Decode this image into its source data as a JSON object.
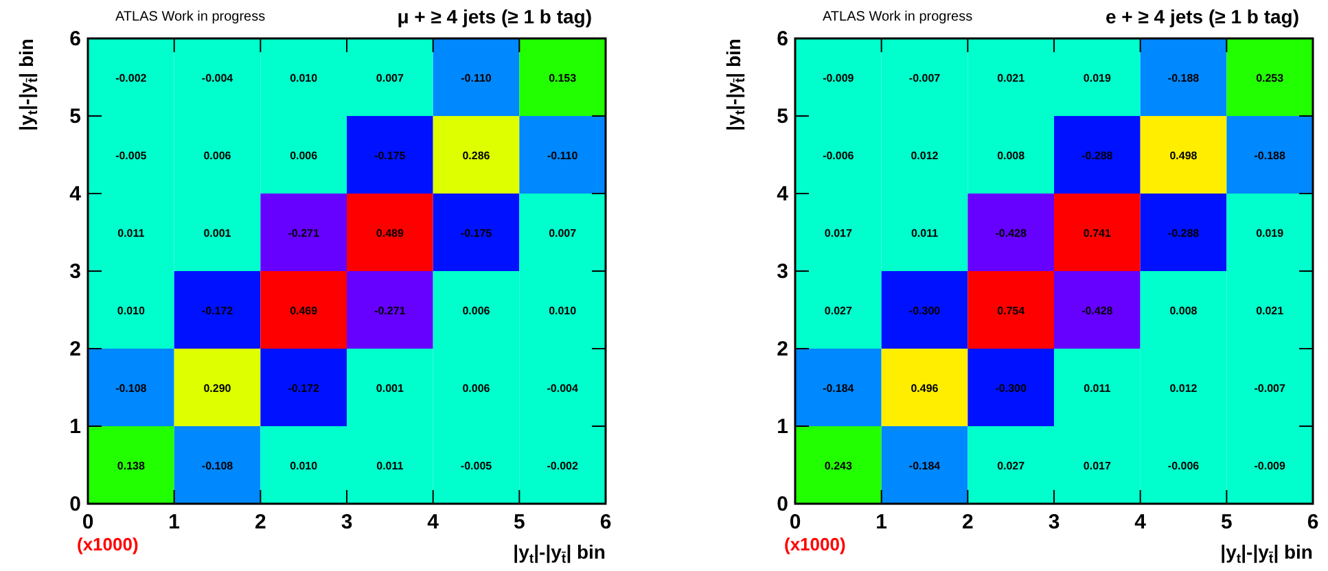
{
  "chart_data": [
    {
      "type": "heatmap",
      "title": "μ + ≥ 4 jets (≥ 1 b tag)",
      "xlabel": "|y$_{t}$|-|y$_{t̄}$| bin",
      "ylabel": "|y$_{t}$|-|y$_{t̄}$| bin",
      "annotations": [
        "ATLAS Work in progress",
        "(x1000)"
      ],
      "xlim": [
        0,
        6
      ],
      "xticks": [
        0,
        1,
        2,
        3,
        4,
        5,
        6
      ],
      "ylim": [
        0,
        6
      ],
      "yticks": [
        0,
        1,
        2,
        3,
        4,
        5,
        6
      ],
      "data_labels": true,
      "cells": [
        [
          -0.002,
          -0.004,
          0.01,
          0.007,
          -0.11,
          0.153
        ],
        [
          -0.005,
          0.006,
          0.006,
          -0.175,
          0.286,
          -0.11
        ],
        [
          0.011,
          0.001,
          -0.271,
          0.489,
          -0.175,
          0.007
        ],
        [
          0.01,
          -0.172,
          0.469,
          -0.271,
          0.006,
          0.01
        ],
        [
          -0.108,
          0.29,
          -0.172,
          0.001,
          0.006,
          -0.004
        ],
        [
          0.138,
          -0.108,
          0.01,
          0.011,
          -0.005,
          -0.002
        ]
      ],
      "cell_labels": [
        [
          "-0.002",
          "-0.004",
          "0.010",
          "0.007",
          "-0.110",
          "0.153"
        ],
        [
          "-0.005",
          "0.006",
          "0.006",
          "-0.175",
          "0.286",
          "-0.110"
        ],
        [
          "0.011",
          "0.001",
          "-0.271",
          "0.489",
          "-0.175",
          "0.007"
        ],
        [
          "0.010",
          "-0.172",
          "0.469",
          "-0.271",
          "0.006",
          "0.010"
        ],
        [
          "-0.108",
          "0.290",
          "-0.172",
          "0.001",
          "0.006",
          "-0.004"
        ],
        [
          "0.138",
          "-0.108",
          "0.010",
          "0.011",
          "-0.005",
          "-0.002"
        ]
      ]
    },
    {
      "type": "heatmap",
      "title": "e + ≥ 4 jets (≥ 1 b tag)",
      "xlabel": "|y$_{t}$|-|y$_{t̄}$| bin",
      "ylabel": "|y$_{t}$|-|y$_{t̄}$| bin",
      "annotations": [
        "ATLAS Work in progress",
        "(x1000)"
      ],
      "xlim": [
        0,
        6
      ],
      "xticks": [
        0,
        1,
        2,
        3,
        4,
        5,
        6
      ],
      "ylim": [
        0,
        6
      ],
      "yticks": [
        0,
        1,
        2,
        3,
        4,
        5,
        6
      ],
      "data_labels": true,
      "cells": [
        [
          -0.009,
          -0.007,
          0.021,
          0.019,
          -0.188,
          0.253
        ],
        [
          -0.006,
          0.012,
          0.008,
          -0.288,
          0.498,
          -0.188
        ],
        [
          0.017,
          0.011,
          -0.428,
          0.741,
          -0.288,
          0.019
        ],
        [
          0.027,
          -0.3,
          0.754,
          -0.428,
          0.008,
          0.021
        ],
        [
          -0.184,
          0.496,
          -0.3,
          0.011,
          0.012,
          -0.007
        ],
        [
          0.243,
          -0.184,
          0.027,
          0.017,
          -0.006,
          -0.009
        ]
      ],
      "cell_labels": [
        [
          "-0.009",
          "-0.007",
          "0.021",
          "0.019",
          "-0.188",
          "0.253"
        ],
        [
          "-0.006",
          "0.012",
          "0.008",
          "-0.288",
          "0.498",
          "-0.188"
        ],
        [
          "0.017",
          "0.011",
          "-0.428",
          "0.741",
          "-0.288",
          "0.019"
        ],
        [
          "0.027",
          "-0.300",
          "0.754",
          "-0.428",
          "0.008",
          "0.021"
        ],
        [
          "-0.184",
          "0.496",
          "-0.300",
          "0.011",
          "0.012",
          "-0.007"
        ],
        [
          "0.243",
          "-0.184",
          "0.027",
          "0.017",
          "-0.006",
          "-0.009"
        ]
      ]
    }
  ]
}
